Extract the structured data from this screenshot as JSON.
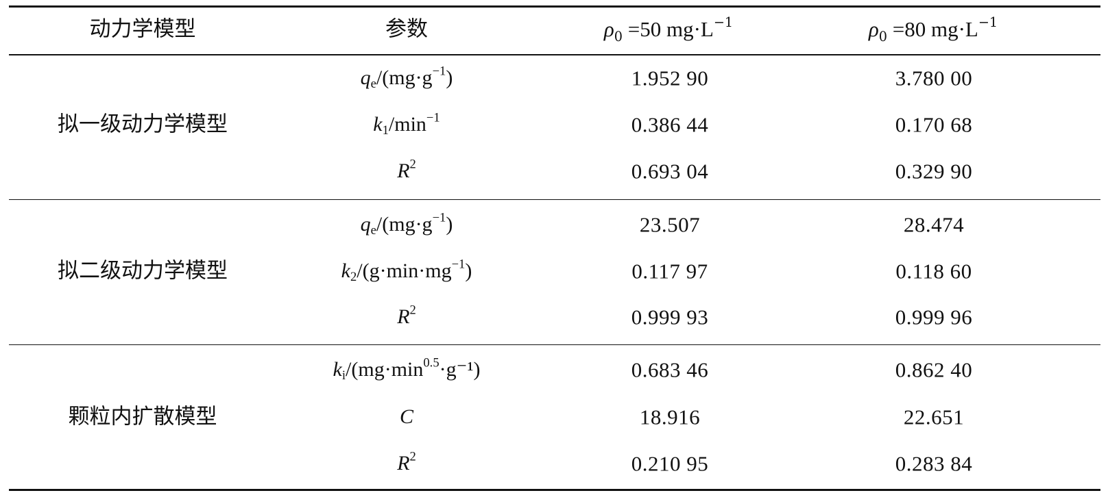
{
  "table": {
    "headers": {
      "model": "动力学模型",
      "param": "参数",
      "conc50": {
        "symbol": "ρ",
        "sub": "0",
        "text": " =50 mg·L",
        "sup": "−1"
      },
      "conc80": {
        "symbol": "ρ",
        "sub": "0",
        "text": " =80 mg·L",
        "sup": "−1"
      }
    },
    "groups": [
      {
        "name": "拟一级动力学模型",
        "rows": [
          {
            "sym": "q",
            "sub": "e",
            "mid": "/(mg·g",
            "sup": "−1",
            "end": ")",
            "v50": "1.952 90",
            "v80": "3.780 00"
          },
          {
            "sym": "k",
            "sub": "1",
            "mid": "/min",
            "sup": "−1",
            "end": "",
            "v50": "0.386 44",
            "v80": "0.170 68"
          },
          {
            "sym": "R",
            "sub": "",
            "mid": "",
            "sup": "2",
            "end": "",
            "v50": "0.693 04",
            "v80": "0.329 90"
          }
        ]
      },
      {
        "name": "拟二级动力学模型",
        "rows": [
          {
            "sym": "q",
            "sub": "e",
            "mid": "/(mg·g",
            "sup": "−1",
            "end": ")",
            "v50": "23.507",
            "v80": "28.474"
          },
          {
            "sym": "k",
            "sub": "2",
            "mid": "/(g·min·mg",
            "sup": "−1",
            "end": ")",
            "v50": "0.117 97",
            "v80": "0.118 60"
          },
          {
            "sym": "R",
            "sub": "",
            "mid": "",
            "sup": "2",
            "end": "",
            "v50": "0.999 93",
            "v80": "0.999 96"
          }
        ]
      },
      {
        "name": "颗粒内扩散模型",
        "rows": [
          {
            "sym": "k",
            "sub": "i",
            "mid": "/(mg·min",
            "sup": "0.5",
            "end": "·g⁻¹)",
            "v50": "0.683 46",
            "v80": "0.862 40"
          },
          {
            "sym": "C",
            "sub": "",
            "mid": "",
            "sup": "",
            "end": "",
            "v50": "18.916",
            "v80": "22.651"
          },
          {
            "sym": "R",
            "sub": "",
            "mid": "",
            "sup": "2",
            "end": "",
            "v50": "0.210 95",
            "v80": "0.283 84"
          }
        ]
      }
    ]
  }
}
